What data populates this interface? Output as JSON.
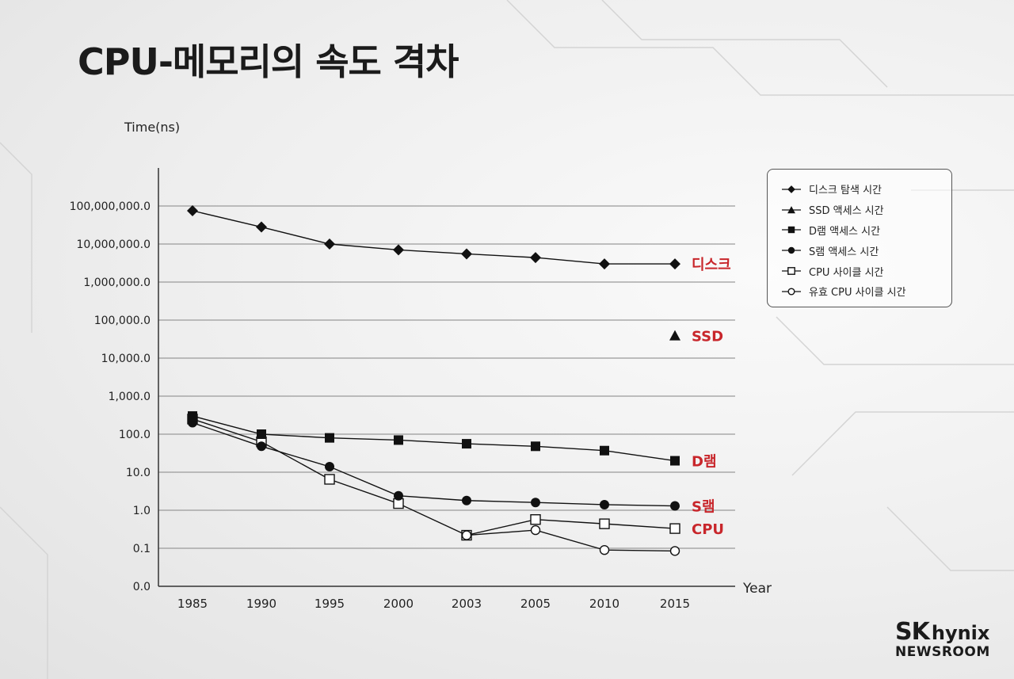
{
  "title": "CPU-메모리의 속도 격차",
  "logo": {
    "sk": "SK",
    "hynix": "hynix",
    "newsroom": "NEWSROOM"
  },
  "chart_data": {
    "type": "line",
    "ylabel": "Time(ns)",
    "xlabel": "Year",
    "y_scale": "log",
    "ylim": [
      0.01,
      1000000000
    ],
    "y_ticks": [
      {
        "value": 0.01,
        "label": "0.0"
      },
      {
        "value": 0.1,
        "label": "0.1"
      },
      {
        "value": 1,
        "label": "1.0"
      },
      {
        "value": 10,
        "label": "10.0"
      },
      {
        "value": 100,
        "label": "100.0"
      },
      {
        "value": 1000,
        "label": "1,000.0"
      },
      {
        "value": 10000,
        "label": "10,000.0"
      },
      {
        "value": 100000,
        "label": "100,000.0"
      },
      {
        "value": 1000000,
        "label": "1,000,000.0"
      },
      {
        "value": 10000000,
        "label": "10,000,000.0"
      },
      {
        "value": 100000000,
        "label": "100,000,000.0"
      }
    ],
    "categories": [
      "1985",
      "1990",
      "1995",
      "2000",
      "2003",
      "2005",
      "2010",
      "2015"
    ],
    "grid": true,
    "legend_position": "right",
    "series": [
      {
        "name": "디스크 탐색 시간",
        "marker": "diamond",
        "end_label": "디스크",
        "values": [
          75000000,
          28000000,
          10000000,
          7000000,
          5500000,
          4400000,
          3000000,
          3000000
        ]
      },
      {
        "name": "SSD 액세스 시간",
        "marker": "triangle",
        "end_label": "SSD",
        "values": [
          null,
          null,
          null,
          null,
          null,
          null,
          null,
          39000
        ]
      },
      {
        "name": "D램 액세스 시간",
        "marker": "square",
        "end_label": "D램",
        "values": [
          300,
          100,
          80,
          70,
          56,
          48,
          37,
          20
        ]
      },
      {
        "name": "S램 액세스 시간",
        "marker": "circle",
        "end_label": "S램",
        "values": [
          200,
          48,
          14,
          2.4,
          1.8,
          1.6,
          1.4,
          1.3
        ]
      },
      {
        "name": "CPU 사이클 시간",
        "marker": "square-open",
        "end_label": "CPU",
        "values": [
          250,
          63,
          6.5,
          1.5,
          0.22,
          0.57,
          0.44,
          0.33
        ]
      },
      {
        "name": "유효 CPU 사이클 시간",
        "marker": "circle-open",
        "end_label": "",
        "values": [
          null,
          null,
          null,
          null,
          0.22,
          0.3,
          0.09,
          0.085
        ]
      }
    ],
    "colors": {
      "line": "#111111",
      "label": "#c8262b",
      "grid": "#9a9a9a"
    }
  }
}
